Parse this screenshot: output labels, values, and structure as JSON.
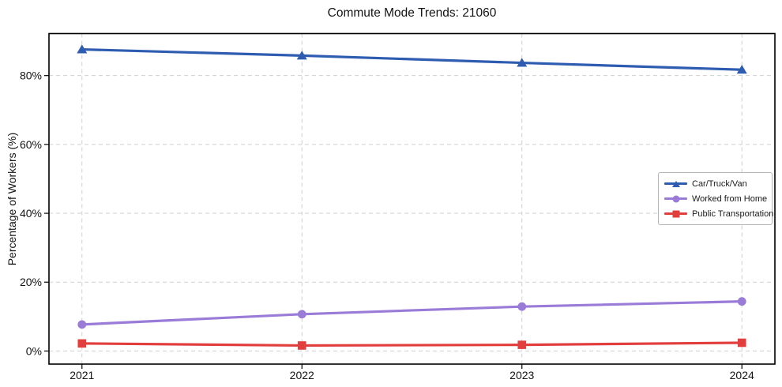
{
  "chart_data": {
    "type": "line",
    "title": "Commute Mode Trends: 21060",
    "xlabel": "",
    "ylabel": "Percentage of Workers (%)",
    "x": [
      2021,
      2022,
      2023,
      2024
    ],
    "x_tick_labels": [
      "2021",
      "2022",
      "2023",
      "2024"
    ],
    "y_ticks": [
      0,
      20,
      40,
      60,
      80
    ],
    "y_tick_labels": [
      "0%",
      "20%",
      "40%",
      "60%",
      "80%"
    ],
    "xlim": [
      2020.85,
      2024.15
    ],
    "ylim": [
      -3.8,
      92.2
    ],
    "grid": true,
    "grid_style": "dashed",
    "legend_position": "center-right",
    "series": [
      {
        "name": "Car/Truck/Van",
        "color": "#2e5cb1",
        "marker": "triangle",
        "values": [
          87.6,
          85.8,
          83.7,
          81.7
        ]
      },
      {
        "name": "Worked from Home",
        "color": "#9a7bd8",
        "marker": "circle",
        "values": [
          7.7,
          10.7,
          12.9,
          14.4
        ]
      },
      {
        "name": "Public Transportation",
        "color": "#e23e3e",
        "marker": "square",
        "values": [
          2.2,
          1.6,
          1.8,
          2.4
        ]
      }
    ]
  }
}
